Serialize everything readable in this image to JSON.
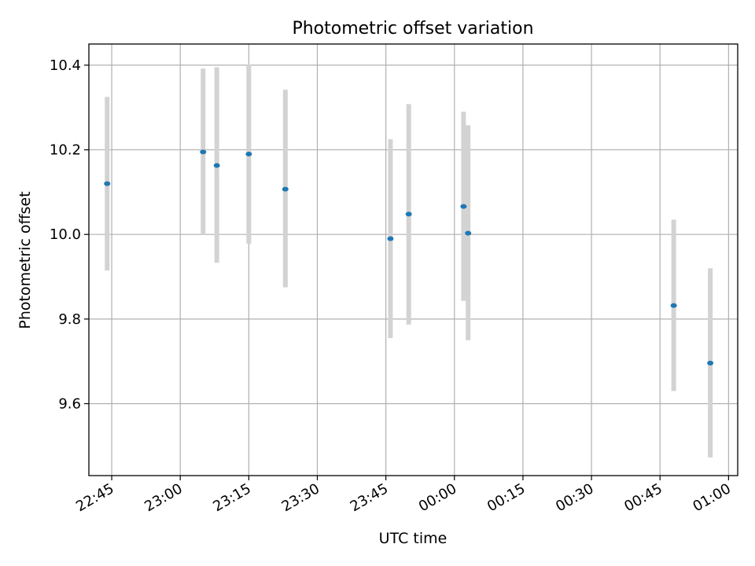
{
  "chart_data": {
    "type": "scatter",
    "title": "Photometric offset variation",
    "xlabel": "UTC time",
    "ylabel": "Photometric offset",
    "grid": true,
    "x_axis_kind": "time-of-day",
    "xlim": [
      "22:40",
      "01:02"
    ],
    "ylim": [
      9.43,
      10.45
    ],
    "x_ticks": [
      "22:45",
      "23:00",
      "23:15",
      "23:30",
      "23:45",
      "00:00",
      "00:15",
      "00:30",
      "00:45",
      "01:00"
    ],
    "y_ticks": [
      9.6,
      9.8,
      10.0,
      10.2,
      10.4
    ],
    "y_tick_labels": [
      "9.6",
      "9.8",
      "10.0",
      "10.2",
      "10.4"
    ],
    "colors": {
      "points": "#1f77b4",
      "errorbars": "#d3d3d3",
      "grid": "#b0b0b0"
    },
    "series": [
      {
        "points": [
          {
            "x": "22:44",
            "y": 10.12,
            "ylow": 9.915,
            "yhigh": 10.325
          },
          {
            "x": "23:05",
            "y": 10.195,
            "ylow": 10.0,
            "yhigh": 10.392
          },
          {
            "x": "23:08",
            "y": 10.163,
            "ylow": 9.933,
            "yhigh": 10.395
          },
          {
            "x": "23:15",
            "y": 10.19,
            "ylow": 9.978,
            "yhigh": 10.402
          },
          {
            "x": "23:23",
            "y": 10.107,
            "ylow": 9.875,
            "yhigh": 10.342
          },
          {
            "x": "23:46",
            "y": 9.99,
            "ylow": 9.755,
            "yhigh": 10.225
          },
          {
            "x": "23:50",
            "y": 10.048,
            "ylow": 9.787,
            "yhigh": 10.308
          },
          {
            "x": "00:02",
            "y": 10.066,
            "ylow": 9.843,
            "yhigh": 10.29
          },
          {
            "x": "00:03",
            "y": 10.003,
            "ylow": 9.75,
            "yhigh": 10.258
          },
          {
            "x": "00:48",
            "y": 9.832,
            "ylow": 9.63,
            "yhigh": 10.035
          },
          {
            "x": "00:56",
            "y": 9.696,
            "ylow": 9.473,
            "yhigh": 9.92
          }
        ]
      }
    ]
  }
}
